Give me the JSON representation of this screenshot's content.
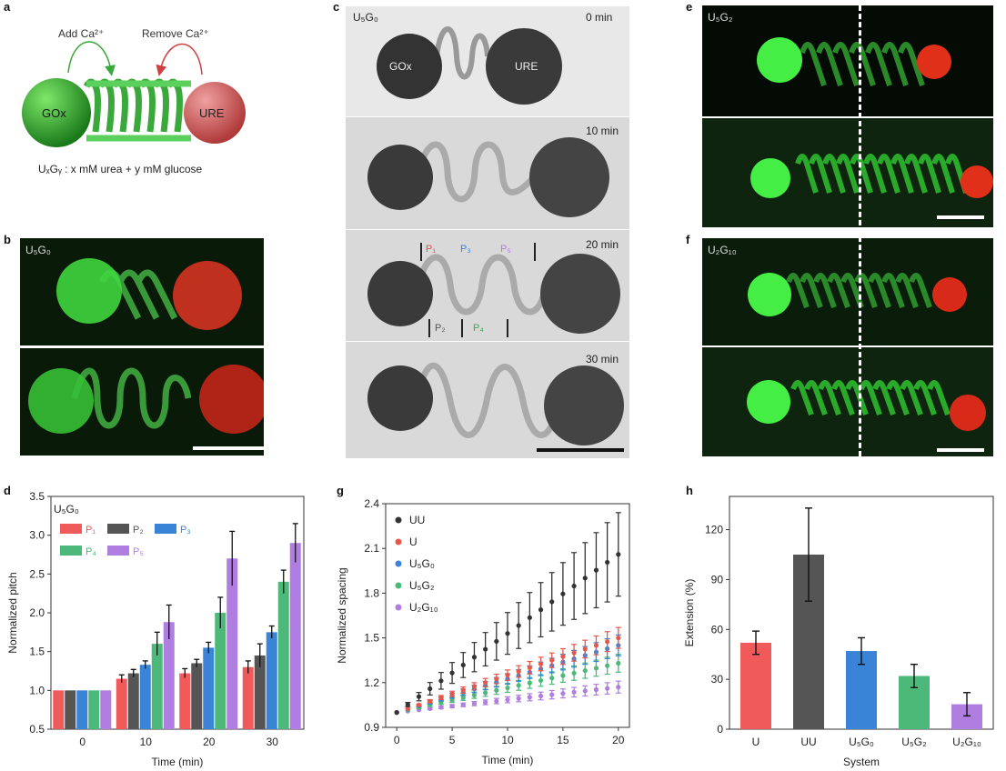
{
  "panels": {
    "a": {
      "label": "a",
      "add_text": "Add Ca²⁺",
      "remove_text": "Remove Ca²⁺",
      "left_sphere": "GOx",
      "right_sphere": "URE",
      "caption": "UₓGᵧ : x mM urea + y mM glucose"
    },
    "b": {
      "label": "b",
      "sample": "U₅G₀"
    },
    "c": {
      "label": "c",
      "sample": "U₅G₀",
      "left_sphere": "GOx",
      "right_sphere": "URE",
      "times": [
        "0 min",
        "10 min",
        "20 min",
        "30 min"
      ],
      "pitch_labels_top": [
        "P₁",
        "P₃",
        "P₅"
      ],
      "pitch_labels_bottom": [
        "P₂",
        "P₄"
      ]
    },
    "e": {
      "label": "e",
      "sample": "U₅G₂"
    },
    "f": {
      "label": "f",
      "sample": "U₂G₁₀"
    },
    "d": {
      "label": "d"
    },
    "g": {
      "label": "g"
    },
    "h": {
      "label": "h"
    }
  },
  "chart_data": [
    {
      "id": "d",
      "type": "bar",
      "title": "U₅G₀",
      "xlabel": "Time (min)",
      "ylabel": "Normalized pitch",
      "categories": [
        "0",
        "10",
        "20",
        "30"
      ],
      "ylim": [
        0.5,
        3.5
      ],
      "yticks": [
        "0.5",
        "1.0",
        "1.5",
        "2.0",
        "2.5",
        "3.0",
        "3.5"
      ],
      "legend": [
        "P₁",
        "P₂",
        "P₃",
        "P₄",
        "P₅"
      ],
      "colors": [
        "#f05a5a",
        "#555555",
        "#3a84d8",
        "#4cb87a",
        "#b07ee0"
      ],
      "series": [
        {
          "name": "P₁",
          "values": [
            1.0,
            1.15,
            1.22,
            1.3
          ],
          "err": [
            0,
            0.05,
            0.06,
            0.08
          ]
        },
        {
          "name": "P₂",
          "values": [
            1.0,
            1.22,
            1.35,
            1.45
          ],
          "err": [
            0,
            0.05,
            0.05,
            0.15
          ]
        },
        {
          "name": "P₃",
          "values": [
            1.0,
            1.33,
            1.55,
            1.75
          ],
          "err": [
            0,
            0.05,
            0.07,
            0.08
          ]
        },
        {
          "name": "P₄",
          "values": [
            1.0,
            1.6,
            2.0,
            2.4
          ],
          "err": [
            0,
            0.15,
            0.2,
            0.15
          ]
        },
        {
          "name": "P₅",
          "values": [
            1.0,
            1.88,
            2.7,
            2.9
          ],
          "err": [
            0,
            0.22,
            0.35,
            0.25
          ]
        }
      ]
    },
    {
      "id": "g",
      "type": "scatter",
      "xlabel": "Time (min)",
      "ylabel": "Normalized spacing",
      "xlim": [
        -1,
        21
      ],
      "ylim": [
        0.9,
        2.4
      ],
      "xticks": [
        "0",
        "5",
        "10",
        "15",
        "20"
      ],
      "yticks": [
        "0.9",
        "1.2",
        "1.5",
        "1.8",
        "2.1",
        "2.4"
      ],
      "legend": [
        "UU",
        "U",
        "U₅G₀",
        "U₅G₂",
        "U₂G₁₀"
      ],
      "colors": [
        "#333333",
        "#e8584a",
        "#3a84d8",
        "#4cb87a",
        "#b07ee0"
      ],
      "x": [
        0,
        1,
        2,
        3,
        4,
        5,
        6,
        7,
        8,
        9,
        10,
        11,
        12,
        13,
        14,
        15,
        16,
        17,
        18,
        19,
        20
      ],
      "series": [
        {
          "name": "UU",
          "end": 2.06,
          "err_end": 0.28
        },
        {
          "name": "U",
          "end": 1.5,
          "err_end": 0.07
        },
        {
          "name": "U₅G₀",
          "end": 1.45,
          "err_end": 0.07
        },
        {
          "name": "U₅G₂",
          "end": 1.33,
          "err_end": 0.06
        },
        {
          "name": "U₂G₁₀",
          "end": 1.17,
          "err_end": 0.04
        }
      ]
    },
    {
      "id": "h",
      "type": "bar",
      "xlabel": "System",
      "ylabel": "Extension (%)",
      "categories": [
        "U",
        "UU",
        "U₅G₀",
        "U₅G₂",
        "U₂G₁₀"
      ],
      "ylim": [
        0,
        140
      ],
      "yticks": [
        "0",
        "30",
        "60",
        "90",
        "120"
      ],
      "colors": [
        "#f05a5a",
        "#555555",
        "#3a84d8",
        "#4cb87a",
        "#b07ee0"
      ],
      "values": [
        52,
        105,
        47,
        32,
        15
      ],
      "err": [
        7,
        28,
        8,
        7,
        7
      ]
    }
  ]
}
